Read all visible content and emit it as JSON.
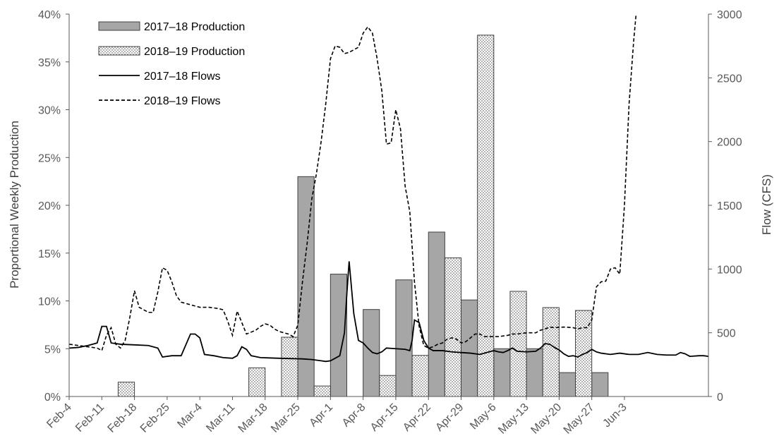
{
  "colors": {
    "prod_2017": "#a6a6a6",
    "prod_2018_dots": "#7f7f7f",
    "bar_border": "#404040",
    "flow_line": "#000000",
    "axis": "#595959"
  },
  "chart_data": {
    "type": "bar",
    "xlabel": "",
    "ylabel": "Proportional Weekly Production",
    "y2label": "Flow (CFS)",
    "ylim": [
      0,
      40
    ],
    "y_ticks": [
      0,
      5,
      10,
      15,
      20,
      25,
      30,
      35,
      40
    ],
    "y_tick_labels": [
      "0%",
      "5%",
      "10%",
      "15%",
      "20%",
      "25%",
      "30%",
      "35%",
      "40%"
    ],
    "y2lim": [
      0,
      3000
    ],
    "y2_ticks": [
      0,
      500,
      1000,
      1500,
      2000,
      2500,
      3000
    ],
    "y2_tick_labels": [
      "0",
      "500",
      "1000",
      "1500",
      "2000",
      "2500",
      "3000"
    ],
    "categories": [
      "Feb-4",
      "Feb-11",
      "Feb-18",
      "Feb-25",
      "Mar-4",
      "Mar-11",
      "Mar-18",
      "Mar-25",
      "Apr-1",
      "Apr-8",
      "Apr-15",
      "Apr-22",
      "Apr-29",
      "May-6",
      "May-13",
      "May-20",
      "May-27",
      "Jun-3"
    ],
    "x_domain_days": [
      0,
      126
    ],
    "legend_position": "top-left",
    "bar_series": [
      {
        "name": "2017–18 Production",
        "style": "solid",
        "points": [
          {
            "week": 7,
            "value": 23.0
          },
          {
            "week": 8,
            "value": 12.8
          },
          {
            "week": 9,
            "value": 9.1
          },
          {
            "week": 10,
            "value": 12.2
          },
          {
            "week": 11,
            "value": 17.2
          },
          {
            "week": 12,
            "value": 10.1
          },
          {
            "week": 13,
            "value": 5.0
          },
          {
            "week": 14,
            "value": 5.0
          },
          {
            "week": 15,
            "value": 2.5
          },
          {
            "week": 16,
            "value": 2.5
          }
        ]
      },
      {
        "name": "2018–19 Production",
        "style": "dotted",
        "points": [
          {
            "week": 1,
            "value": 1.5
          },
          {
            "week": 5,
            "value": 3.0
          },
          {
            "week": 6,
            "value": 6.2
          },
          {
            "week": 7,
            "value": 1.1
          },
          {
            "week": 9,
            "value": 2.2
          },
          {
            "week": 10,
            "value": 4.3
          },
          {
            "week": 11,
            "value": 14.5
          },
          {
            "week": 12,
            "value": 37.8
          },
          {
            "week": 13,
            "value": 11.0
          },
          {
            "week": 14,
            "value": 9.3
          },
          {
            "week": 15,
            "value": 9.0
          }
        ]
      }
    ],
    "line_series": [
      {
        "name": "2017–18 Flows",
        "dash": "solid",
        "points": [
          [
            0,
            380
          ],
          [
            2,
            385
          ],
          [
            4,
            400
          ],
          [
            6,
            420
          ],
          [
            7,
            550
          ],
          [
            8,
            550
          ],
          [
            9,
            420
          ],
          [
            11,
            410
          ],
          [
            14,
            405
          ],
          [
            17,
            400
          ],
          [
            19,
            380
          ],
          [
            20,
            310
          ],
          [
            22,
            320
          ],
          [
            24,
            320
          ],
          [
            26,
            490
          ],
          [
            27,
            490
          ],
          [
            28,
            460
          ],
          [
            29,
            330
          ],
          [
            31,
            320
          ],
          [
            33,
            305
          ],
          [
            35,
            300
          ],
          [
            36,
            320
          ],
          [
            37,
            390
          ],
          [
            38,
            370
          ],
          [
            39,
            320
          ],
          [
            41,
            305
          ],
          [
            45,
            300
          ],
          [
            50,
            295
          ],
          [
            52,
            290
          ],
          [
            54,
            280
          ],
          [
            55,
            275
          ],
          [
            56,
            280
          ],
          [
            57,
            300
          ],
          [
            58,
            320
          ],
          [
            59,
            500
          ],
          [
            59.5,
            800
          ],
          [
            60,
            1060
          ],
          [
            61,
            650
          ],
          [
            62,
            440
          ],
          [
            63,
            420
          ],
          [
            64,
            380
          ],
          [
            65,
            345
          ],
          [
            66,
            335
          ],
          [
            67,
            350
          ],
          [
            68,
            380
          ],
          [
            70,
            375
          ],
          [
            72,
            370
          ],
          [
            73,
            360
          ],
          [
            73.5,
            440
          ],
          [
            74,
            600
          ],
          [
            75,
            580
          ],
          [
            76,
            440
          ],
          [
            77,
            380
          ],
          [
            78,
            360
          ],
          [
            80,
            360
          ],
          [
            82,
            350
          ],
          [
            84,
            345
          ],
          [
            86,
            340
          ],
          [
            88,
            330
          ],
          [
            90,
            350
          ],
          [
            91,
            360
          ],
          [
            92,
            350
          ],
          [
            93,
            345
          ],
          [
            94,
            360
          ],
          [
            95,
            380
          ],
          [
            96,
            355
          ],
          [
            98,
            350
          ],
          [
            100,
            355
          ],
          [
            101,
            380
          ],
          [
            102,
            415
          ],
          [
            103,
            410
          ],
          [
            104,
            385
          ],
          [
            105,
            365
          ],
          [
            106,
            335
          ],
          [
            107,
            315
          ],
          [
            108,
            320
          ],
          [
            109,
            310
          ],
          [
            110,
            330
          ],
          [
            111,
            345
          ],
          [
            112,
            370
          ],
          [
            113,
            350
          ],
          [
            114,
            340
          ],
          [
            116,
            330
          ],
          [
            118,
            340
          ],
          [
            120,
            330
          ],
          [
            122,
            330
          ],
          [
            124,
            345
          ],
          [
            126,
            330
          ],
          [
            128,
            325
          ],
          [
            130,
            325
          ],
          [
            131,
            345
          ],
          [
            132,
            335
          ],
          [
            133,
            315
          ],
          [
            135,
            320
          ],
          [
            136,
            320
          ],
          [
            137,
            315
          ]
        ]
      },
      {
        "name": "2018–19 Flows",
        "dash": "dashed",
        "points": [
          [
            0,
            410
          ],
          [
            2,
            400
          ],
          [
            4,
            390
          ],
          [
            6,
            380
          ],
          [
            7,
            360
          ],
          [
            8,
            480
          ],
          [
            9,
            540
          ],
          [
            10,
            410
          ],
          [
            11,
            380
          ],
          [
            12,
            440
          ],
          [
            13,
            620
          ],
          [
            14,
            830
          ],
          [
            15,
            700
          ],
          [
            16,
            680
          ],
          [
            17,
            660
          ],
          [
            18,
            660
          ],
          [
            19,
            820
          ],
          [
            20,
            1010
          ],
          [
            21,
            990
          ],
          [
            22,
            900
          ],
          [
            23,
            790
          ],
          [
            24,
            740
          ],
          [
            25,
            730
          ],
          [
            26,
            720
          ],
          [
            27,
            710
          ],
          [
            28,
            700
          ],
          [
            30,
            700
          ],
          [
            32,
            690
          ],
          [
            33,
            680
          ],
          [
            34,
            590
          ],
          [
            35,
            480
          ],
          [
            36,
            670
          ],
          [
            37,
            580
          ],
          [
            38,
            490
          ],
          [
            40,
            520
          ],
          [
            41,
            550
          ],
          [
            42,
            570
          ],
          [
            43,
            560
          ],
          [
            44,
            530
          ],
          [
            45,
            510
          ],
          [
            46,
            500
          ],
          [
            47,
            490
          ],
          [
            48,
            470
          ],
          [
            49,
            560
          ],
          [
            50,
            900
          ],
          [
            51,
            1200
          ],
          [
            52,
            1550
          ],
          [
            53,
            1750
          ],
          [
            54,
            2000
          ],
          [
            55,
            2300
          ],
          [
            56,
            2650
          ],
          [
            57,
            2750
          ],
          [
            58,
            2740
          ],
          [
            59,
            2690
          ],
          [
            60,
            2700
          ],
          [
            61,
            2720
          ],
          [
            62,
            2740
          ],
          [
            63,
            2850
          ],
          [
            64,
            2900
          ],
          [
            65,
            2850
          ],
          [
            66,
            2650
          ],
          [
            67,
            2400
          ],
          [
            68,
            1980
          ],
          [
            69,
            1990
          ],
          [
            70,
            2250
          ],
          [
            71,
            2100
          ],
          [
            72,
            1650
          ],
          [
            73,
            1450
          ],
          [
            74,
            900
          ],
          [
            75,
            550
          ],
          [
            76,
            400
          ],
          [
            77,
            380
          ],
          [
            78,
            390
          ],
          [
            79,
            410
          ],
          [
            80,
            420
          ],
          [
            81,
            450
          ],
          [
            82,
            460
          ],
          [
            83,
            450
          ],
          [
            84,
            420
          ],
          [
            85,
            430
          ],
          [
            86,
            460
          ],
          [
            87,
            490
          ],
          [
            88,
            490
          ],
          [
            89,
            470
          ],
          [
            90,
            470
          ],
          [
            92,
            470
          ],
          [
            94,
            480
          ],
          [
            95,
            490
          ],
          [
            96,
            490
          ],
          [
            98,
            500
          ],
          [
            100,
            500
          ],
          [
            101,
            520
          ],
          [
            102,
            530
          ],
          [
            103,
            545
          ],
          [
            104,
            540
          ],
          [
            106,
            545
          ],
          [
            108,
            540
          ],
          [
            109,
            530
          ],
          [
            110,
            540
          ],
          [
            111,
            540
          ],
          [
            112,
            600
          ],
          [
            113,
            860
          ],
          [
            114,
            900
          ],
          [
            115,
            905
          ],
          [
            116,
            1000
          ],
          [
            117,
            1010
          ],
          [
            118,
            960
          ],
          [
            119,
            1500
          ],
          [
            120,
            2300
          ],
          [
            121,
            2800
          ],
          [
            121.5,
            3000
          ]
        ]
      }
    ]
  }
}
